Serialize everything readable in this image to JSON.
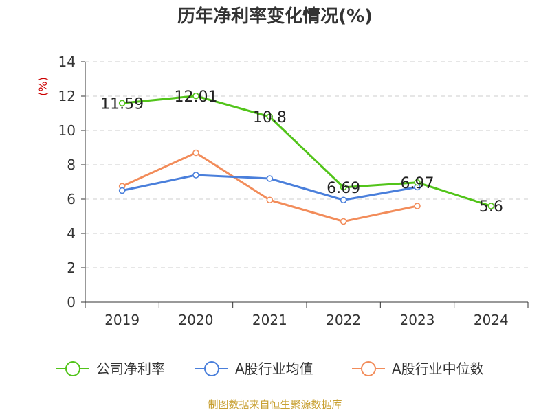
{
  "chart_data": {
    "type": "line",
    "title": "历年净利率变化情况(%)",
    "ylabel": "(%)",
    "xlabel": "",
    "categories": [
      "2019",
      "2020",
      "2021",
      "2022",
      "2023",
      "2024"
    ],
    "ylim": [
      0,
      14
    ],
    "yticks": [
      "0",
      "2",
      "4",
      "6",
      "8",
      "10",
      "12",
      "14"
    ],
    "grid": true,
    "legend_position": "bottom",
    "series": [
      {
        "name": "公司净利率",
        "color": "#52c41a",
        "values": [
          11.59,
          12.01,
          10.8,
          6.69,
          6.97,
          5.6
        ],
        "labels": [
          "11.59",
          "12.01",
          "10.8",
          "6.69",
          "6.97",
          "5.6"
        ]
      },
      {
        "name": "A股行业均值",
        "color": "#4a7fdb",
        "values": [
          6.5,
          7.4,
          7.2,
          5.95,
          6.7,
          null
        ]
      },
      {
        "name": "A股行业中位数",
        "color": "#f28c5a",
        "values": [
          6.75,
          8.7,
          5.95,
          4.7,
          5.6,
          null
        ]
      }
    ]
  },
  "source_text": "制图数据来自恒生聚源数据库",
  "colors": {
    "ylabel": "#cc0000",
    "source": "#c8a032",
    "axis": "#333333",
    "grid": "#cccccc"
  }
}
